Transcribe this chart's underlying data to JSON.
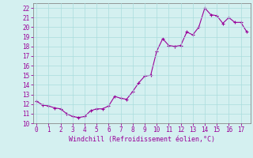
{
  "xlabel": "Windchill (Refroidissement éolien,°C)",
  "ylabel": "",
  "bg_color": "#d4f0f0",
  "line_color": "#990099",
  "marker_color": "#990099",
  "xlim": [
    -0.3,
    17.8
  ],
  "ylim": [
    10,
    22.5
  ],
  "yticks": [
    10,
    11,
    12,
    13,
    14,
    15,
    16,
    17,
    18,
    19,
    20,
    21,
    22
  ],
  "xticks": [
    0,
    1,
    2,
    3,
    4,
    5,
    6,
    7,
    8,
    9,
    10,
    11,
    12,
    13,
    14,
    15,
    16,
    17
  ],
  "x": [
    0,
    0.5,
    1,
    1.5,
    2,
    2.5,
    3,
    3.5,
    4,
    4.5,
    5,
    5.5,
    6,
    6.5,
    7,
    7.5,
    8,
    8.5,
    9,
    9.5,
    10,
    10.5,
    11,
    11.5,
    12,
    12.5,
    13,
    13.5,
    14,
    14.5,
    15,
    15.5,
    16,
    16.5,
    17,
    17.5
  ],
  "y": [
    12.3,
    11.9,
    11.8,
    11.6,
    11.5,
    11.0,
    10.7,
    10.6,
    10.7,
    11.3,
    11.5,
    11.5,
    11.8,
    12.8,
    12.6,
    12.5,
    13.3,
    14.2,
    14.9,
    15.0,
    17.5,
    18.8,
    18.1,
    18.0,
    18.1,
    19.5,
    19.2,
    20.0,
    22.0,
    21.3,
    21.2,
    20.4,
    21.0,
    20.5,
    20.5,
    19.5
  ],
  "grid_color": "#aadddd",
  "spine_color": "#888888",
  "tick_labelsize": 5.5,
  "xlabel_fontsize": 6.0
}
